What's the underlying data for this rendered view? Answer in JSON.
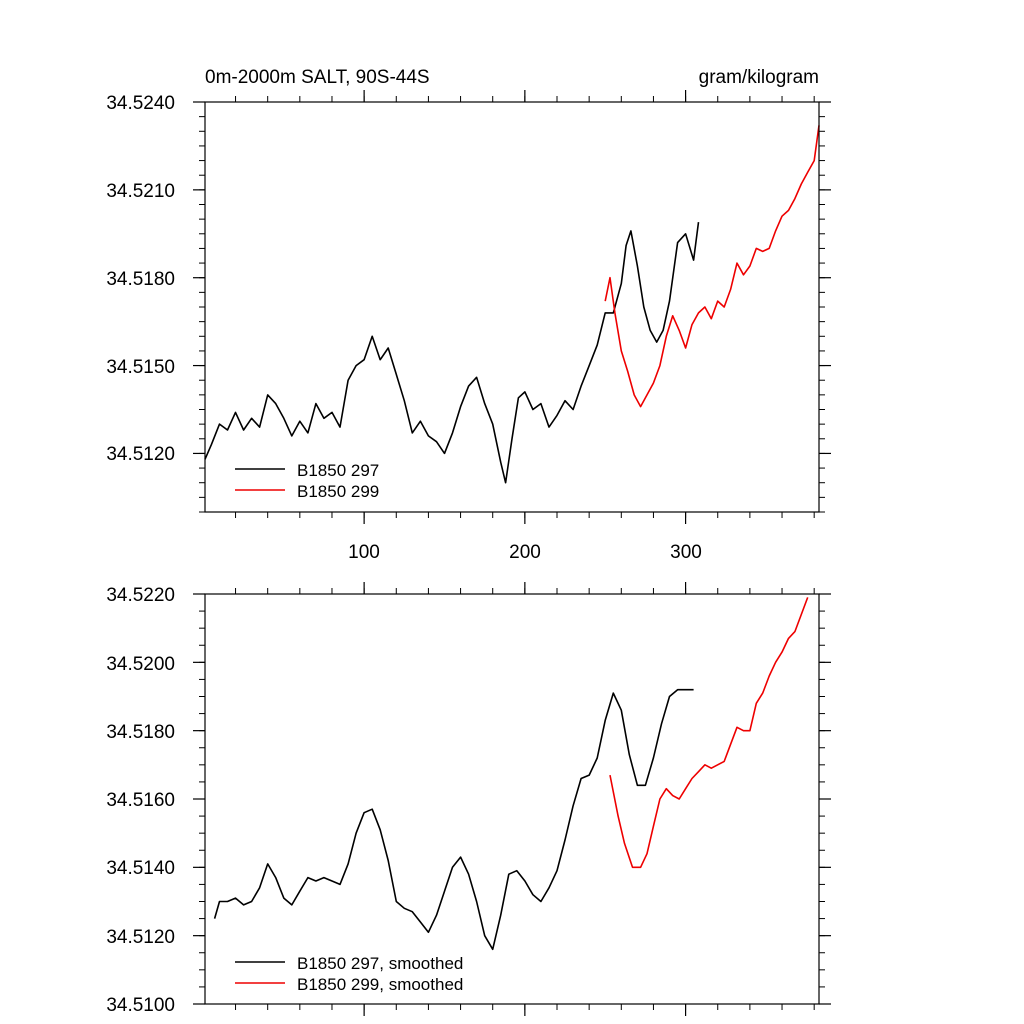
{
  "colors": {
    "series_a": "#000000",
    "series_b": "#ee0000",
    "frame": "#000000"
  },
  "chart_data": [
    {
      "type": "line",
      "title_left": "0m-2000m SALT, 90S-44S",
      "title_right": "gram/kilogram",
      "xlim": [
        1,
        383
      ],
      "ylim": [
        34.51,
        34.524
      ],
      "yticks": [
        "34.5120",
        "34.5150",
        "34.5180",
        "34.5210",
        "34.5240"
      ],
      "xticks": [
        "100",
        "200",
        "300"
      ],
      "series": [
        {
          "name": "B1850 297",
          "color": "#000000",
          "x": [
            1,
            5,
            10,
            15,
            20,
            25,
            30,
            35,
            40,
            45,
            50,
            55,
            60,
            65,
            70,
            75,
            80,
            85,
            90,
            95,
            100,
            105,
            110,
            115,
            120,
            125,
            130,
            135,
            140,
            145,
            150,
            155,
            160,
            165,
            170,
            175,
            180,
            185,
            188,
            192,
            196,
            200,
            205,
            210,
            215,
            220,
            225,
            230,
            235,
            240,
            245,
            250,
            255,
            260,
            263,
            266,
            270,
            274,
            278,
            282,
            286,
            290,
            295,
            300,
            305,
            308
          ],
          "y": [
            34.5118,
            34.5123,
            34.513,
            34.5128,
            34.5134,
            34.5128,
            34.5132,
            34.5129,
            34.514,
            34.5137,
            34.5132,
            34.5126,
            34.5131,
            34.5127,
            34.5137,
            34.5132,
            34.5134,
            34.5129,
            34.5145,
            34.515,
            34.5152,
            34.516,
            34.5152,
            34.5156,
            34.5147,
            34.5138,
            34.5127,
            34.5131,
            34.5126,
            34.5124,
            34.512,
            34.5127,
            34.5136,
            34.5143,
            34.5146,
            34.5137,
            34.513,
            34.5117,
            34.511,
            34.5125,
            34.5139,
            34.5141,
            34.5135,
            34.5137,
            34.5129,
            34.5133,
            34.5138,
            34.5135,
            34.5143,
            34.515,
            34.5157,
            34.5168,
            34.5168,
            34.5178,
            34.5191,
            34.5196,
            34.5184,
            34.517,
            34.5162,
            34.5158,
            34.5162,
            34.5172,
            34.5192,
            34.5195,
            34.5186,
            34.5199
          ]
        },
        {
          "name": "B1850 299",
          "color": "#ee0000",
          "x": [
            250,
            253,
            256,
            260,
            264,
            268,
            272,
            276,
            280,
            284,
            288,
            292,
            296,
            300,
            304,
            308,
            312,
            316,
            320,
            324,
            328,
            332,
            336,
            340,
            344,
            348,
            352,
            356,
            360,
            364,
            368,
            372,
            376,
            380,
            383
          ],
          "y": [
            34.5172,
            34.518,
            34.5168,
            34.5155,
            34.5148,
            34.514,
            34.5136,
            34.514,
            34.5144,
            34.515,
            34.516,
            34.5167,
            34.5162,
            34.5156,
            34.5164,
            34.5168,
            34.517,
            34.5166,
            34.5172,
            34.517,
            34.5176,
            34.5185,
            34.5181,
            34.5184,
            34.519,
            34.5189,
            34.519,
            34.5196,
            34.5201,
            34.5203,
            34.5207,
            34.5212,
            34.5216,
            34.522,
            34.5232
          ]
        }
      ],
      "legend": {
        "position": "bottom-left",
        "entries": [
          "B1850 297",
          "B1850 299"
        ]
      }
    },
    {
      "type": "line",
      "xlim": [
        1,
        383
      ],
      "ylim": [
        34.51,
        34.522
      ],
      "yticks": [
        "34.5100",
        "34.5120",
        "34.5140",
        "34.5160",
        "34.5180",
        "34.5200",
        "34.5220"
      ],
      "series": [
        {
          "name": "B1850 297, smoothed",
          "color": "#000000",
          "x": [
            7,
            10,
            15,
            20,
            25,
            30,
            35,
            40,
            45,
            50,
            55,
            60,
            65,
            70,
            75,
            80,
            85,
            90,
            95,
            100,
            105,
            110,
            115,
            120,
            125,
            130,
            135,
            140,
            145,
            150,
            155,
            160,
            165,
            170,
            175,
            180,
            185,
            190,
            195,
            200,
            205,
            210,
            215,
            220,
            225,
            230,
            235,
            240,
            245,
            250,
            255,
            260,
            265,
            270,
            275,
            280,
            285,
            290,
            295,
            300,
            305
          ],
          "y": [
            34.5125,
            34.513,
            34.513,
            34.5131,
            34.5129,
            34.513,
            34.5134,
            34.5141,
            34.5137,
            34.5131,
            34.5129,
            34.5133,
            34.5137,
            34.5136,
            34.5137,
            34.5136,
            34.5135,
            34.5141,
            34.515,
            34.5156,
            34.5157,
            34.5151,
            34.5142,
            34.513,
            34.5128,
            34.5127,
            34.5124,
            34.5121,
            34.5126,
            34.5133,
            34.514,
            34.5143,
            34.5138,
            34.513,
            34.512,
            34.5116,
            34.5126,
            34.5138,
            34.5139,
            34.5136,
            34.5132,
            34.513,
            34.5134,
            34.5139,
            34.5148,
            34.5158,
            34.5166,
            34.5167,
            34.5172,
            34.5183,
            34.5191,
            34.5186,
            34.5173,
            34.5164,
            34.5164,
            34.5172,
            34.5182,
            34.519,
            34.5192,
            34.5192,
            34.5192
          ]
        },
        {
          "name": "B1850 299, smoothed",
          "color": "#ee0000",
          "x": [
            253,
            258,
            262,
            267,
            272,
            276,
            280,
            284,
            288,
            292,
            296,
            300,
            304,
            308,
            312,
            316,
            320,
            324,
            328,
            332,
            336,
            340,
            344,
            348,
            352,
            356,
            360,
            364,
            368,
            372,
            376
          ],
          "y": [
            34.5167,
            34.5155,
            34.5147,
            34.514,
            34.514,
            34.5144,
            34.5152,
            34.516,
            34.5163,
            34.5161,
            34.516,
            34.5163,
            34.5166,
            34.5168,
            34.517,
            34.5169,
            34.517,
            34.5171,
            34.5176,
            34.5181,
            34.518,
            34.518,
            34.5188,
            34.5191,
            34.5196,
            34.52,
            34.5203,
            34.5207,
            34.5209,
            34.5214,
            34.5219
          ]
        }
      ],
      "legend": {
        "position": "bottom-left",
        "entries": [
          "B1850 297, smoothed",
          "B1850 299, smoothed"
        ]
      }
    }
  ]
}
